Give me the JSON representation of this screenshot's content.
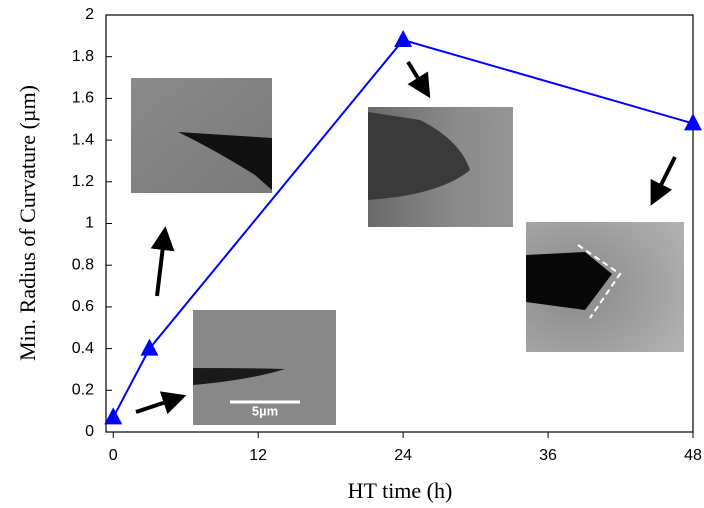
{
  "chart_data": {
    "type": "line",
    "xlabel": "HT time (h)",
    "ylabel": "Min. Radius of Curvature (µm)",
    "x": [
      0,
      3,
      24,
      48
    ],
    "values": [
      0.07,
      0.4,
      1.88,
      1.48
    ],
    "color": "#0000ff",
    "xlim": [
      -0.6,
      48
    ],
    "xticks": [
      0,
      12,
      24,
      36,
      48
    ],
    "ylim": [
      0,
      2
    ],
    "yticks": [
      0,
      0.2,
      0.4,
      0.6,
      0.8,
      1,
      1.2,
      1.4,
      1.6,
      1.8,
      2
    ],
    "annotations": [
      "5µm"
    ]
  }
}
